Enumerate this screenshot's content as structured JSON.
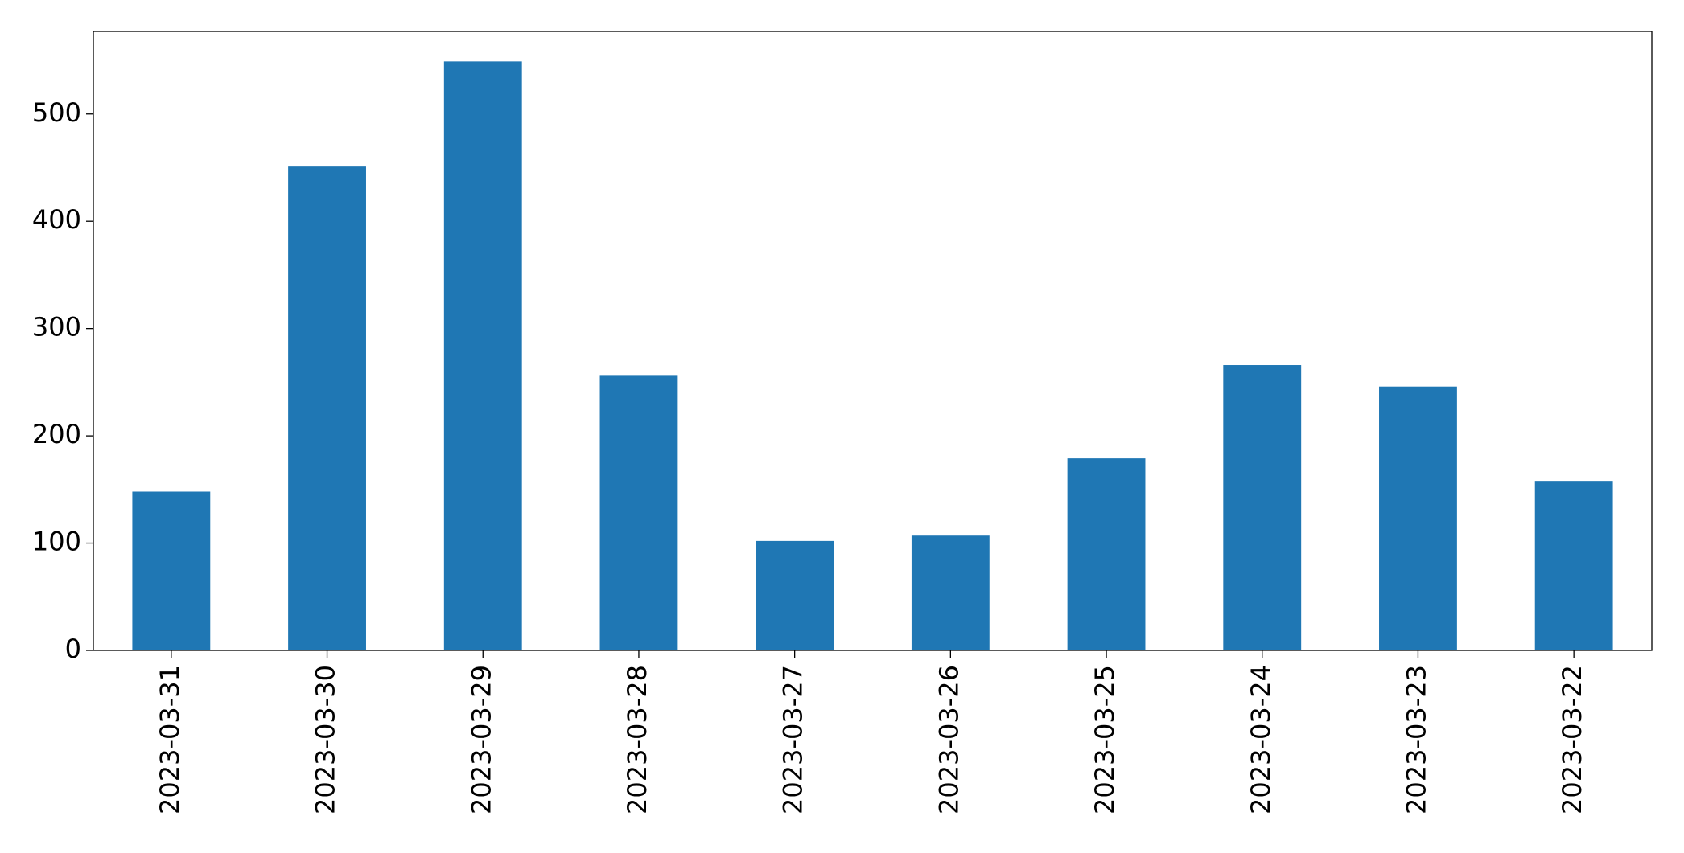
{
  "chart_data": {
    "type": "bar",
    "categories": [
      "2023-03-31",
      "2023-03-30",
      "2023-03-29",
      "2023-03-28",
      "2023-03-27",
      "2023-03-26",
      "2023-03-25",
      "2023-03-24",
      "2023-03-23",
      "2023-03-22"
    ],
    "values": [
      148,
      451,
      549,
      256,
      102,
      107,
      179,
      266,
      246,
      158
    ],
    "color": "#1f77b4",
    "ylim": [
      0,
      577
    ],
    "yticks": [
      0,
      100,
      200,
      300,
      400,
      500
    ],
    "grid": false
  }
}
